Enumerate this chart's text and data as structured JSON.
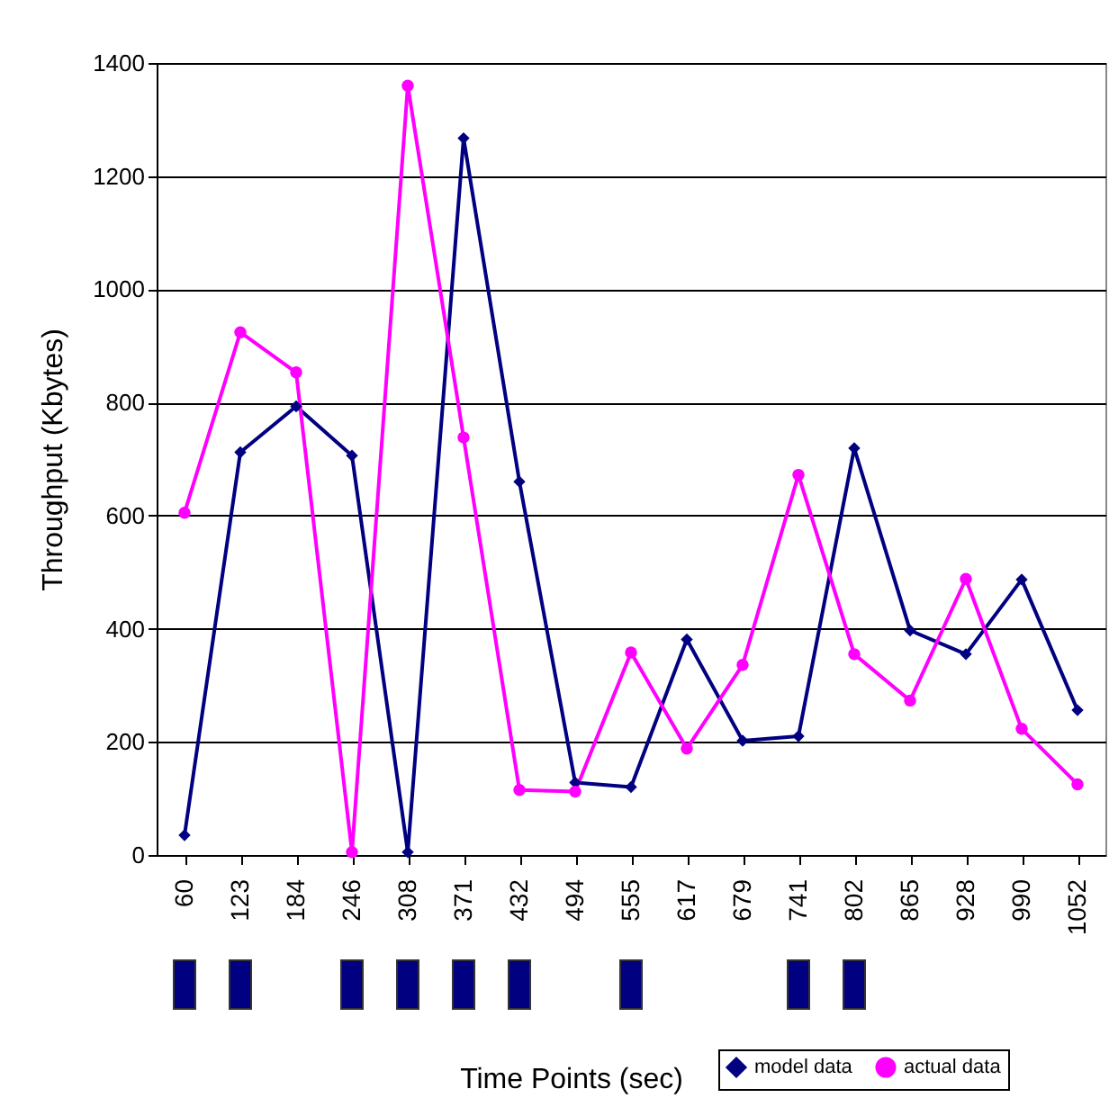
{
  "chart_data": {
    "type": "line",
    "xlabel": "Time Points (sec)",
    "ylabel": "Throughput (Kbytes)",
    "categories": [
      "60",
      "123",
      "184",
      "246",
      "308",
      "371",
      "432",
      "494",
      "555",
      "617",
      "679",
      "741",
      "802",
      "865",
      "928",
      "990",
      "1052"
    ],
    "ylim": [
      0,
      1400
    ],
    "yticks": [
      0,
      200,
      400,
      600,
      800,
      1000,
      1200,
      1400
    ],
    "grid": "y",
    "legend": "bottom right",
    "series": [
      {
        "name": "model data",
        "color": "#000080",
        "marker": "diamond",
        "values": [
          35,
          712,
          793,
          706,
          5,
          1267,
          660,
          128,
          120,
          381,
          202,
          210,
          719,
          397,
          355,
          487,
          256
        ]
      },
      {
        "name": "actual data",
        "color": "#ff00ff",
        "marker": "circle",
        "values": [
          605,
          924,
          853,
          5,
          1360,
          738,
          115,
          112,
          358,
          188,
          336,
          672,
          355,
          273,
          488,
          223,
          125
        ]
      }
    ]
  }
}
